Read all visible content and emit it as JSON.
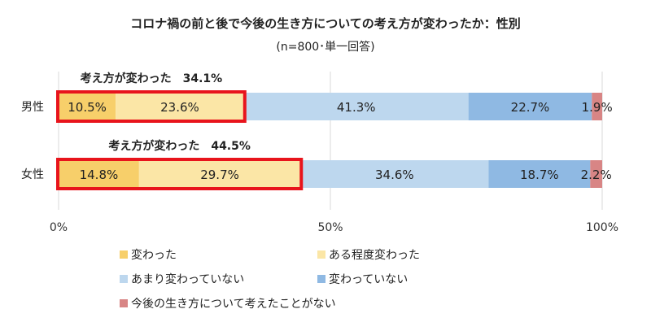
{
  "chart_data": {
    "type": "bar",
    "orientation": "horizontal",
    "stacked": true,
    "title": "コロナ禍の前と後で今後の生き方についての考え方が変わったか：性別",
    "subtitle": "(n=800･単一回答)",
    "categories": [
      "男性",
      "女性"
    ],
    "series": [
      {
        "name": "変わった",
        "color": "#f7cf6a",
        "values": [
          10.5,
          14.8
        ]
      },
      {
        "name": "ある程度変わった",
        "color": "#fbe6a6",
        "values": [
          23.6,
          29.7
        ]
      },
      {
        "name": "あまり変わっていない",
        "color": "#bdd7ee",
        "values": [
          41.3,
          34.6
        ]
      },
      {
        "name": "変わっていない",
        "color": "#8fb9e3",
        "values": [
          22.7,
          18.7
        ]
      },
      {
        "name": "今後の生き方について考えたことがない",
        "color": "#d88585",
        "values": [
          1.9,
          2.2
        ]
      }
    ],
    "value_labels": [
      [
        "10.5%",
        "23.6%",
        "41.3%",
        "22.7%",
        "1.9%"
      ],
      [
        "14.8%",
        "29.7%",
        "34.6%",
        "18.7%",
        "2.2%"
      ]
    ],
    "annotations": [
      {
        "category": "男性",
        "text": "考え方が変わった　34.1%",
        "value": 34.1
      },
      {
        "category": "女性",
        "text": "考え方が変わった　44.5%",
        "value": 44.5
      }
    ],
    "highlight_color": "#e8141c",
    "xlim": [
      0,
      100
    ],
    "xticks": [
      0,
      50,
      100
    ],
    "xtick_labels": [
      "0%",
      "50%",
      "100%"
    ],
    "grid": "vertical",
    "legend_position": "bottom"
  }
}
